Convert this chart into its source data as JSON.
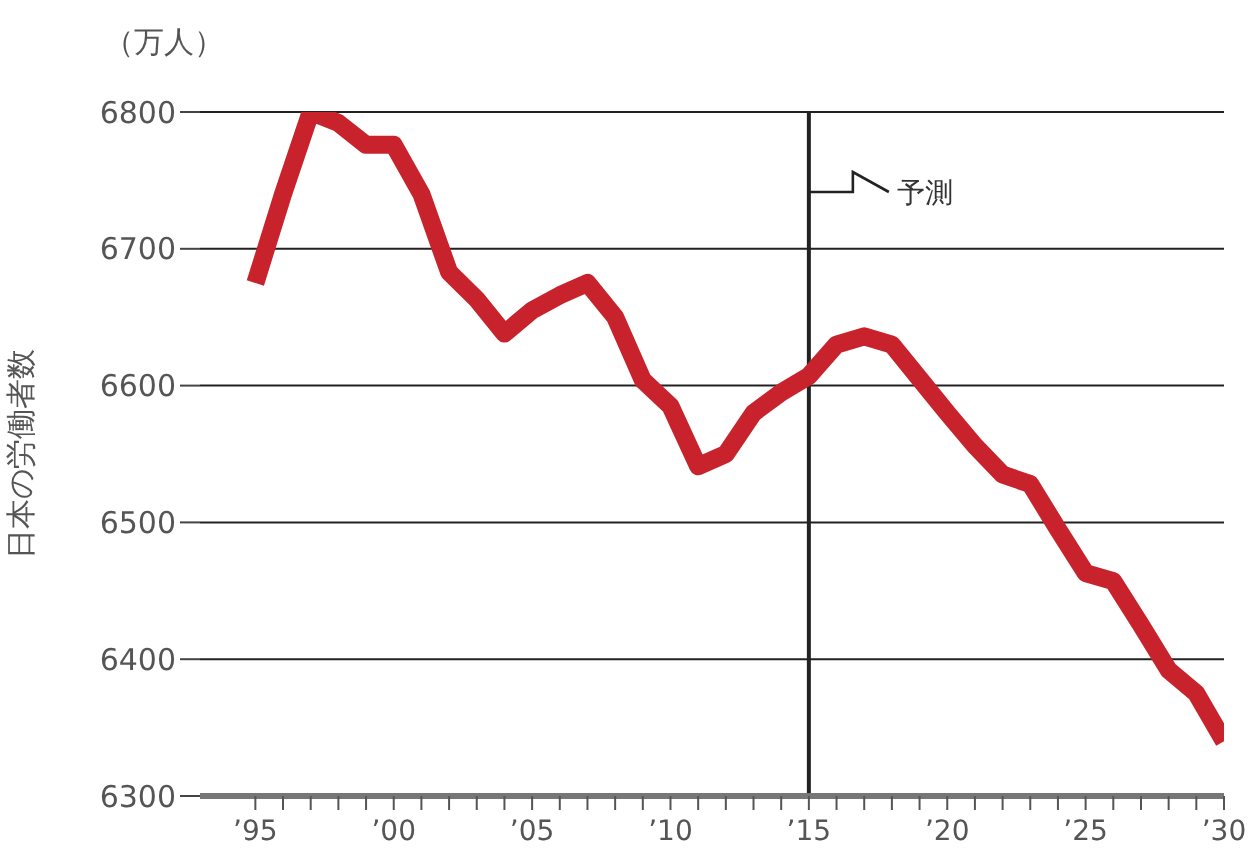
{
  "chart_data": {
    "type": "line",
    "ylabel": "日本の労働者数",
    "annotations": [
      "（万人）"
    ],
    "x": [
      1995,
      1996,
      1997,
      1998,
      1999,
      2000,
      2001,
      2002,
      2003,
      2004,
      2005,
      2006,
      2007,
      2008,
      2009,
      2010,
      2011,
      2012,
      2013,
      2014,
      2015,
      2016,
      2017,
      2018,
      2019,
      2020,
      2021,
      2022,
      2023,
      2024,
      2025,
      2026,
      2027,
      2028,
      2029,
      2030
    ],
    "series": [
      {
        "color": "#c8232c",
        "values": [
          6675,
          6740,
          6800,
          6792,
          6776,
          6776,
          6740,
          6683,
          6663,
          6638,
          6655,
          6666,
          6675,
          6650,
          6604,
          6585,
          6541,
          6550,
          6580,
          6595,
          6607,
          6630,
          6636,
          6630,
          6605,
          6580,
          6556,
          6535,
          6528,
          6495,
          6463,
          6457,
          6425,
          6392,
          6375,
          6340
        ]
      }
    ],
    "xlim": [
      1993,
      2030
    ],
    "xticks": [
      {
        "value": 1995,
        "label": "’95"
      },
      {
        "value": 1996,
        "label": null
      },
      {
        "value": 1997,
        "label": null
      },
      {
        "value": 1998,
        "label": null
      },
      {
        "value": 1999,
        "label": null
      },
      {
        "value": 2000,
        "label": "’00"
      },
      {
        "value": 2001,
        "label": null
      },
      {
        "value": 2002,
        "label": null
      },
      {
        "value": 2003,
        "label": null
      },
      {
        "value": 2004,
        "label": null
      },
      {
        "value": 2005,
        "label": "’05"
      },
      {
        "value": 2006,
        "label": null
      },
      {
        "value": 2007,
        "label": null
      },
      {
        "value": 2008,
        "label": null
      },
      {
        "value": 2009,
        "label": null
      },
      {
        "value": 2010,
        "label": "’10"
      },
      {
        "value": 2011,
        "label": null
      },
      {
        "value": 2012,
        "label": null
      },
      {
        "value": 2013,
        "label": null
      },
      {
        "value": 2014,
        "label": null
      },
      {
        "value": 2015,
        "label": "’15"
      },
      {
        "value": 2016,
        "label": null
      },
      {
        "value": 2017,
        "label": null
      },
      {
        "value": 2018,
        "label": null
      },
      {
        "value": 2019,
        "label": null
      },
      {
        "value": 2020,
        "label": "’20"
      },
      {
        "value": 2021,
        "label": null
      },
      {
        "value": 2022,
        "label": null
      },
      {
        "value": 2023,
        "label": null
      },
      {
        "value": 2024,
        "label": null
      },
      {
        "value": 2025,
        "label": "’25"
      },
      {
        "value": 2026,
        "label": null
      },
      {
        "value": 2027,
        "label": null
      },
      {
        "value": 2028,
        "label": null
      },
      {
        "value": 2029,
        "label": null
      },
      {
        "value": 2030,
        "label": "’30"
      }
    ],
    "ylim": [
      6300,
      6800
    ],
    "yticks": [
      6300,
      6400,
      6500,
      6600,
      6700,
      6800
    ],
    "ref_lines": [
      {
        "axis": "x",
        "value": 2015,
        "label": "予測",
        "color": "#222222"
      }
    ],
    "grid": "y",
    "legend": false,
    "marker": "none",
    "line_style": "solid"
  }
}
